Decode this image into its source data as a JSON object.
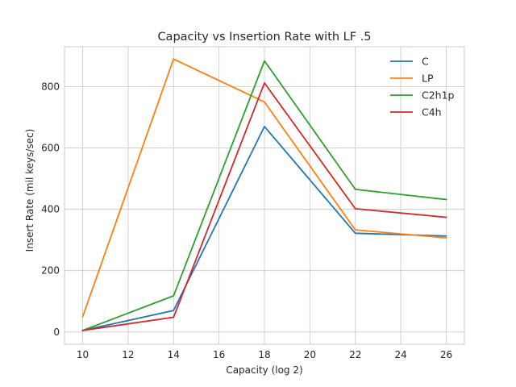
{
  "chart_data": {
    "type": "line",
    "title": "Capacity vs Insertion Rate with LF .5",
    "xlabel": "Capacity (log 2)",
    "ylabel": "Insert Rate (mil keys/sec)",
    "x": [
      10,
      14,
      18,
      22,
      26
    ],
    "xlim": [
      9.2,
      26.8
    ],
    "ylim": [
      -40,
      930
    ],
    "xticks": [
      10,
      12,
      14,
      16,
      18,
      20,
      22,
      24,
      26
    ],
    "yticks": [
      0,
      200,
      400,
      600,
      800
    ],
    "grid": true,
    "legend_position": "top-right",
    "series": [
      {
        "name": "C",
        "color": "#1f77b4",
        "values": [
          5,
          70,
          670,
          322,
          313
        ]
      },
      {
        "name": "LP",
        "color": "#ff7f0e",
        "values": [
          50,
          890,
          750,
          333,
          307
        ]
      },
      {
        "name": "C2h1p",
        "color": "#2ca02c",
        "values": [
          5,
          118,
          884,
          465,
          432
        ]
      },
      {
        "name": "C4h",
        "color": "#d62728",
        "values": [
          5,
          48,
          812,
          402,
          374
        ]
      }
    ]
  }
}
